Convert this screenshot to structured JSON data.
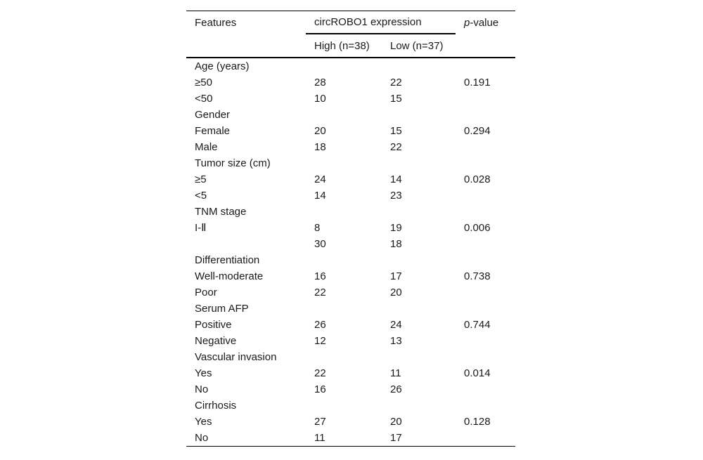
{
  "page": {
    "background": "#ffffff"
  },
  "table": {
    "colors": {
      "text": "#1a1a1a",
      "rule": "#000000",
      "background": "#ffffff"
    },
    "header": {
      "features_label": "Features",
      "group_label": "circROBO1 expression",
      "p_label_italic": "p",
      "p_label_suffix": "-value",
      "high_label": "High (n=38)",
      "low_label": "Low (n=37)"
    },
    "rows": [
      {
        "feature": "Age (years)",
        "high": "",
        "low": "",
        "p": ""
      },
      {
        "feature": "≥50",
        "high": "28",
        "low": "22",
        "p": "0.191"
      },
      {
        "feature": "<50",
        "high": "10",
        "low": "15",
        "p": ""
      },
      {
        "feature": "Gender",
        "high": "",
        "low": "",
        "p": ""
      },
      {
        "feature": "Female",
        "high": "20",
        "low": "15",
        "p": "0.294"
      },
      {
        "feature": "Male",
        "high": "18",
        "low": "22",
        "p": ""
      },
      {
        "feature": "Tumor size (cm)",
        "high": "",
        "low": "",
        "p": ""
      },
      {
        "feature": "≥5",
        "high": "24",
        "low": "14",
        "p": "0.028"
      },
      {
        "feature": "<5",
        "high": "14",
        "low": "23",
        "p": ""
      },
      {
        "feature": "TNM stage",
        "high": "",
        "low": "",
        "p": ""
      },
      {
        "feature": "I-Ⅱ",
        "high": "8",
        "low": "19",
        "p": "0.006"
      },
      {
        "feature": "",
        "high": "30",
        "low": "18",
        "p": ""
      },
      {
        "feature": "Differentiation",
        "high": "",
        "low": "",
        "p": ""
      },
      {
        "feature": "Well-moderate",
        "high": "16",
        "low": "17",
        "p": "0.738"
      },
      {
        "feature": "Poor",
        "high": "22",
        "low": "20",
        "p": ""
      },
      {
        "feature": "Serum AFP",
        "high": "",
        "low": "",
        "p": ""
      },
      {
        "feature": "Positive",
        "high": "26",
        "low": "24",
        "p": "0.744"
      },
      {
        "feature": "Negative",
        "high": "12",
        "low": "13",
        "p": ""
      },
      {
        "feature": "Vascular invasion",
        "high": "",
        "low": "",
        "p": ""
      },
      {
        "feature": "Yes",
        "high": "22",
        "low": "11",
        "p": "0.014"
      },
      {
        "feature": "No",
        "high": "16",
        "low": "26",
        "p": ""
      },
      {
        "feature": "Cirrhosis",
        "high": "",
        "low": "",
        "p": ""
      },
      {
        "feature": "Yes",
        "high": "27",
        "low": "20",
        "p": "0.128"
      },
      {
        "feature": "No",
        "high": "11",
        "low": "17",
        "p": ""
      }
    ]
  }
}
